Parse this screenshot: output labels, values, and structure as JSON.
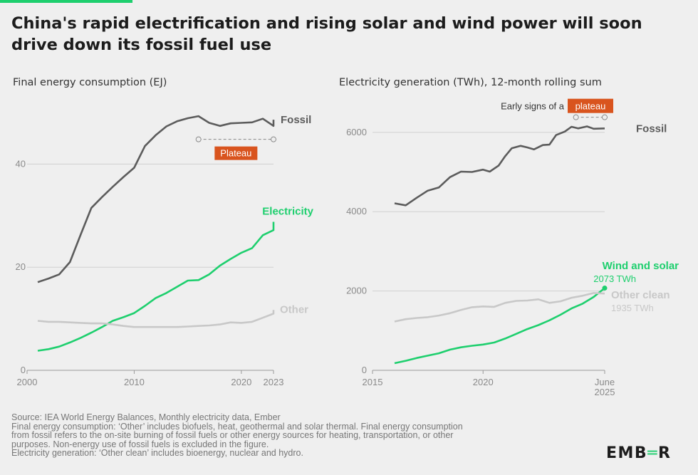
{
  "title": "China's rapid electrification and rising solar and wind power will soon drive down its fossil fuel use",
  "colors": {
    "accent": "#1ecf6e",
    "fossil": "#5c5c5c",
    "electricity": "#1ecf6e",
    "other": "#c8c8c8",
    "plateau": "#d9541e",
    "grid": "#d0d0d0"
  },
  "chart_data": [
    {
      "type": "line",
      "title": "Final energy consumption (EJ)",
      "xlim": [
        2000,
        2023
      ],
      "ylim": [
        0,
        50
      ],
      "x_ticks": [
        2000,
        2010,
        2020,
        2023
      ],
      "x_tick_labels": [
        "2000",
        "2010",
        "2020",
        "2023"
      ],
      "y_ticks": [
        0,
        20,
        40
      ],
      "y_tick_labels": [
        "0",
        "20",
        "40"
      ],
      "series": [
        {
          "name": "Fossil",
          "color": "#5c5c5c",
          "x": [
            2001,
            2002,
            2003,
            2004,
            2005,
            2006,
            2007,
            2008,
            2009,
            2010,
            2011,
            2012,
            2013,
            2014,
            2015,
            2016,
            2017,
            2018,
            2019,
            2020,
            2021,
            2022,
            2023
          ],
          "y": [
            17.1,
            17.8,
            18.6,
            21.0,
            26.3,
            31.5,
            33.6,
            35.6,
            37.5,
            39.3,
            43.5,
            45.6,
            47.3,
            48.3,
            48.9,
            49.3,
            48.0,
            47.4,
            47.9,
            48.0,
            48.1,
            48.8,
            47.4
          ]
        },
        {
          "name": "Electricity",
          "color": "#1ecf6e",
          "x": [
            2001,
            2002,
            2003,
            2004,
            2005,
            2006,
            2007,
            2008,
            2009,
            2010,
            2011,
            2012,
            2013,
            2014,
            2015,
            2016,
            2017,
            2018,
            2019,
            2020,
            2021,
            2022,
            2023
          ],
          "y": [
            3.8,
            4.1,
            4.6,
            5.4,
            6.3,
            7.3,
            8.4,
            9.6,
            10.3,
            11.1,
            12.5,
            14.0,
            15.0,
            16.2,
            17.4,
            17.5,
            18.6,
            20.3,
            21.6,
            22.8,
            23.7,
            26.2,
            27.2
          ]
        },
        {
          "name": "Other",
          "color": "#c8c8c8",
          "x": [
            2001,
            2002,
            2003,
            2004,
            2005,
            2006,
            2007,
            2008,
            2009,
            2010,
            2011,
            2012,
            2013,
            2014,
            2015,
            2016,
            2017,
            2018,
            2019,
            2020,
            2021,
            2022,
            2023
          ],
          "y": [
            9.6,
            9.4,
            9.4,
            9.3,
            9.2,
            9.1,
            9.1,
            8.9,
            8.6,
            8.4,
            8.4,
            8.4,
            8.4,
            8.4,
            8.5,
            8.6,
            8.7,
            8.9,
            9.3,
            9.2,
            9.4,
            10.2,
            11.0
          ]
        }
      ],
      "end_points": {
        "Fossil": 48.6,
        "Electricity": 28.8,
        "Other": 11.7
      },
      "annotations": [
        {
          "text": "Plateau",
          "x_from": 2016,
          "x_to": 2023,
          "y": 44.8
        }
      ]
    },
    {
      "type": "line",
      "title": "Electricity generation (TWh), 12-month rolling sum",
      "xlim": [
        2015,
        2025.5
      ],
      "ylim": [
        0,
        6500
      ],
      "x_ticks": [
        2015,
        2020,
        2025.5
      ],
      "x_tick_labels": [
        "2015",
        "2020",
        "June 2025"
      ],
      "y_ticks": [
        0,
        2000,
        4000,
        6000
      ],
      "y_tick_labels": [
        "0",
        "2000",
        "4000",
        "6000"
      ],
      "series": [
        {
          "name": "Fossil",
          "color": "#5c5c5c",
          "x": [
            2016.0,
            2016.5,
            2017.0,
            2017.5,
            2018.0,
            2018.5,
            2019.0,
            2019.5,
            2020.0,
            2020.3,
            2020.7,
            2021.0,
            2021.3,
            2021.7,
            2022.0,
            2022.3,
            2022.7,
            2023.0,
            2023.3,
            2023.7,
            2024.0,
            2024.3,
            2024.7,
            2025.0,
            2025.5
          ],
          "y": [
            4210,
            4160,
            4350,
            4530,
            4610,
            4870,
            5010,
            5000,
            5060,
            5010,
            5160,
            5400,
            5600,
            5660,
            5620,
            5570,
            5680,
            5690,
            5930,
            6020,
            6140,
            6100,
            6150,
            6090,
            6100
          ]
        },
        {
          "name": "Wind and solar",
          "color": "#1ecf6e",
          "x": [
            2016.0,
            2016.5,
            2017.0,
            2017.5,
            2018.0,
            2018.5,
            2019.0,
            2019.5,
            2020.0,
            2020.5,
            2021.0,
            2021.5,
            2022.0,
            2022.5,
            2023.0,
            2023.5,
            2024.0,
            2024.5,
            2025.0,
            2025.5
          ],
          "y": [
            180,
            240,
            310,
            370,
            430,
            520,
            580,
            620,
            650,
            700,
            800,
            920,
            1040,
            1140,
            1260,
            1400,
            1560,
            1680,
            1850,
            2073
          ]
        },
        {
          "name": "Other clean",
          "color": "#c8c8c8",
          "x": [
            2016.0,
            2016.5,
            2017.0,
            2017.5,
            2018.0,
            2018.5,
            2019.0,
            2019.5,
            2020.0,
            2020.5,
            2021.0,
            2021.5,
            2022.0,
            2022.5,
            2023.0,
            2023.5,
            2024.0,
            2024.5,
            2025.0,
            2025.5
          ],
          "y": [
            1230,
            1290,
            1320,
            1340,
            1380,
            1440,
            1520,
            1590,
            1610,
            1600,
            1700,
            1750,
            1760,
            1790,
            1700,
            1740,
            1830,
            1880,
            1950,
            1935
          ]
        }
      ],
      "end_values": {
        "Wind and solar": "2073 TWh",
        "Other clean": "1935 TWh"
      },
      "annotations": [
        {
          "prefix": "Early signs of a",
          "text": "plateau",
          "x_from": 2024.2,
          "x_to": 2025.5,
          "y": 6380
        }
      ]
    }
  ],
  "footer": {
    "lines": [
      "Source: IEA World Energy Balances, Monthly electricity data, Ember",
      "Final energy consumption: ‘Other’ includes biofuels, heat, geothermal and solar thermal. Final energy consumption",
      "from fossil refers to the on-site burning of fossil fuels or other energy sources for heating, transportation, or other",
      "purposes. Non-energy use of fossil fuels is excluded in the figure.",
      "Electricity generation: ‘Other clean’ includes bioenergy, nuclear and hydro."
    ],
    "logo_left": "EMB",
    "logo_mid": "═",
    "logo_right": "R"
  }
}
